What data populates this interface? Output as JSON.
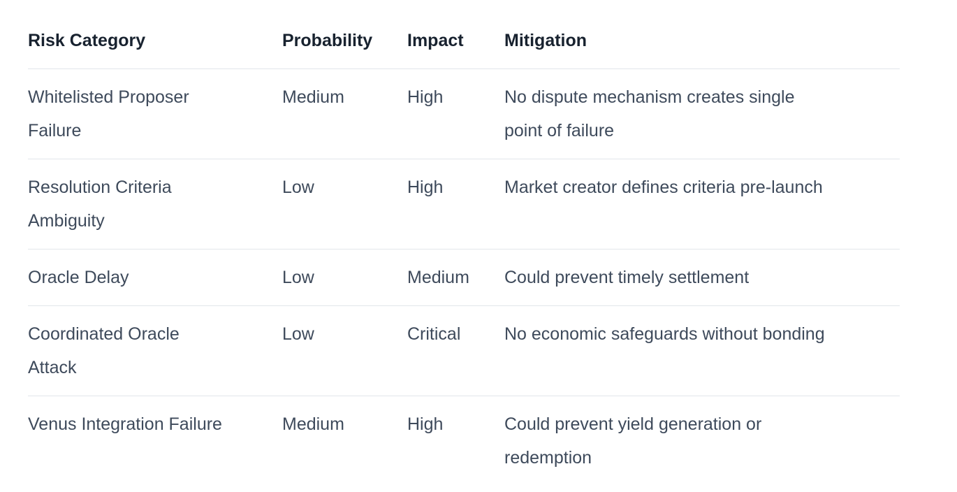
{
  "table": {
    "colors": {
      "background": "#ffffff",
      "header_text": "#18222f",
      "body_text": "#3e4a5b",
      "divider": "#e2e6ea"
    },
    "columns": [
      {
        "label": "Risk Category"
      },
      {
        "label": "Probability"
      },
      {
        "label": "Impact"
      },
      {
        "label": "Mitigation"
      }
    ],
    "rows": [
      {
        "risk_category": "Whitelisted Proposer\nFailure",
        "probability": "Medium",
        "impact": "High",
        "mitigation": "No dispute mechanism creates single\npoint of failure"
      },
      {
        "risk_category": "Resolution Criteria\nAmbiguity",
        "probability": "Low",
        "impact": "High",
        "mitigation": "Market creator defines criteria pre-launch"
      },
      {
        "risk_category": "Oracle Delay",
        "probability": "Low",
        "impact": "Medium",
        "mitigation": "Could prevent timely settlement"
      },
      {
        "risk_category": "Coordinated Oracle\nAttack",
        "probability": "Low",
        "impact": "Critical",
        "mitigation": "No economic safeguards without bonding"
      },
      {
        "risk_category": "Venus Integration Failure",
        "probability": "Medium",
        "impact": "High",
        "mitigation": "Could prevent yield generation or\nredemption"
      }
    ]
  }
}
